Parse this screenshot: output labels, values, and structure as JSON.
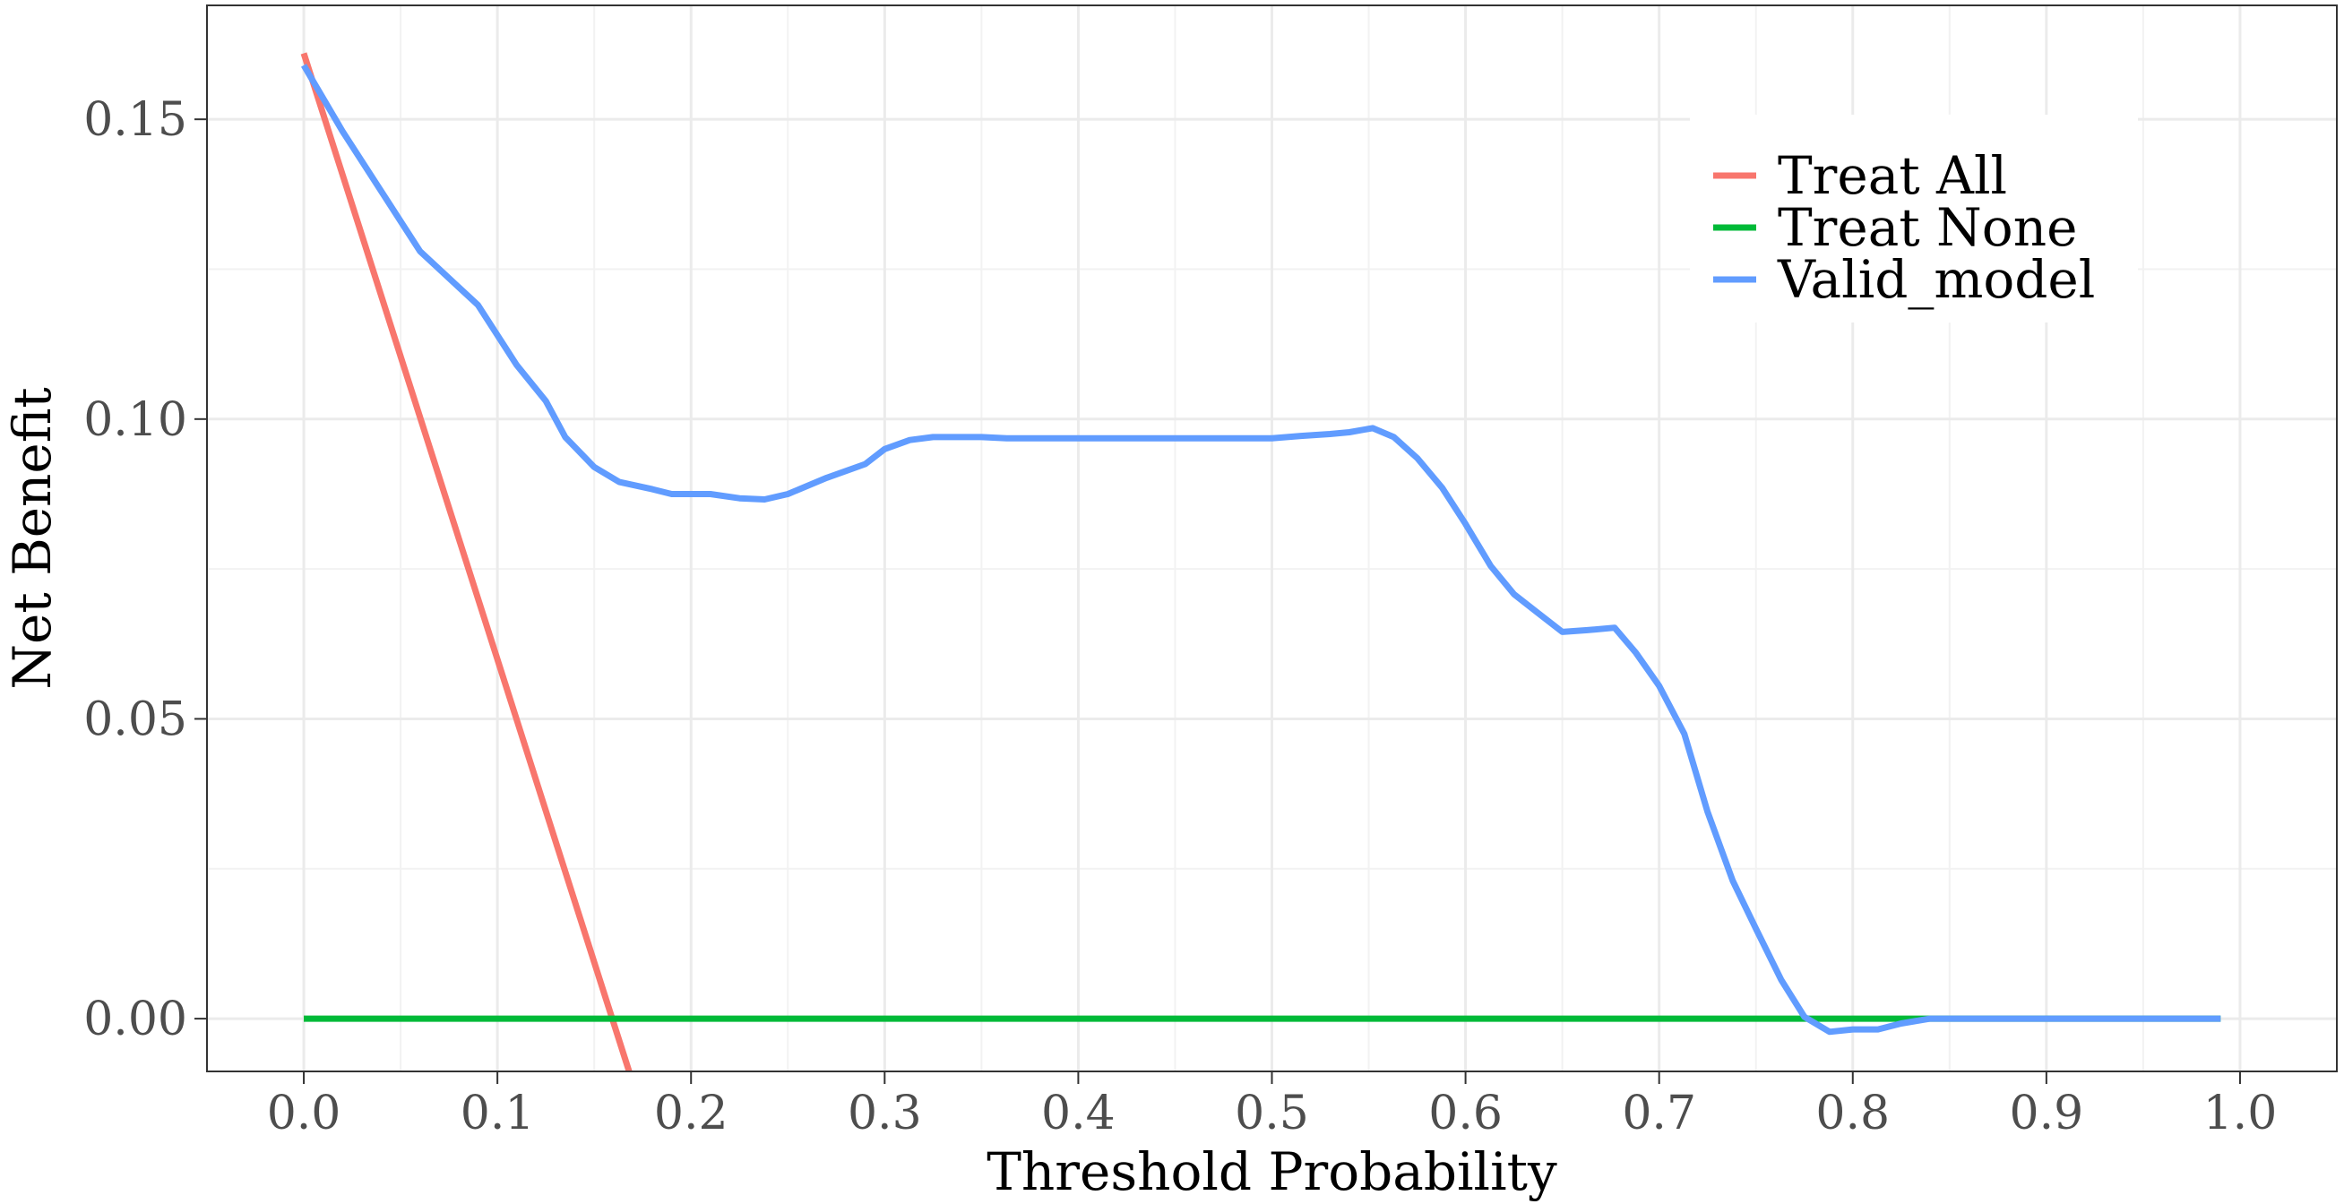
{
  "chart_data": {
    "type": "line",
    "title": "",
    "xlabel": "Threshold Probability",
    "ylabel": "Net Benefit",
    "xlim": [
      -0.05,
      1.05
    ],
    "ylim": [
      -0.0088,
      0.169
    ],
    "x_ticks": [
      0.0,
      0.1,
      0.2,
      0.3,
      0.4,
      0.5,
      0.6,
      0.7,
      0.8,
      0.9,
      1.0
    ],
    "x_tick_labels": [
      "0.0",
      "0.1",
      "0.2",
      "0.3",
      "0.4",
      "0.5",
      "0.6",
      "0.7",
      "0.8",
      "0.9",
      "1.0"
    ],
    "y_ticks": [
      0.0,
      0.05,
      0.1,
      0.15
    ],
    "y_tick_labels": [
      "0.00",
      "0.05",
      "0.10",
      "0.15"
    ],
    "grid": true,
    "legend_position": "top-right",
    "series": [
      {
        "name": "Treat All",
        "color": "#f8766d",
        "x": [
          0.0,
          0.168
        ],
        "y": [
          0.161,
          -0.0088
        ]
      },
      {
        "name": "Treat None",
        "color": "#00ba38",
        "x": [
          0.0,
          0.99
        ],
        "y": [
          0.0,
          0.0
        ]
      },
      {
        "name": "Valid_model",
        "color": "#619cff",
        "x": [
          0.0,
          0.02,
          0.04,
          0.06,
          0.08,
          0.09,
          0.1,
          0.11,
          0.125,
          0.135,
          0.15,
          0.163,
          0.18,
          0.19,
          0.21,
          0.225,
          0.238,
          0.25,
          0.27,
          0.29,
          0.3,
          0.313,
          0.325,
          0.34,
          0.35,
          0.363,
          0.38,
          0.4,
          0.43,
          0.46,
          0.5,
          0.515,
          0.53,
          0.54,
          0.552,
          0.563,
          0.575,
          0.588,
          0.6,
          0.613,
          0.625,
          0.638,
          0.65,
          0.663,
          0.677,
          0.688,
          0.7,
          0.713,
          0.725,
          0.738,
          0.75,
          0.763,
          0.775,
          0.788,
          0.8,
          0.813,
          0.825,
          0.84,
          0.87,
          0.9,
          0.95,
          0.99
        ],
        "y": [
          0.159,
          0.148,
          0.138,
          0.128,
          0.122,
          0.119,
          0.114,
          0.109,
          0.103,
          0.097,
          0.092,
          0.0895,
          0.0883,
          0.0875,
          0.0875,
          0.0868,
          0.0866,
          0.0875,
          0.0902,
          0.0925,
          0.095,
          0.0965,
          0.097,
          0.097,
          0.097,
          0.0968,
          0.0968,
          0.0968,
          0.0968,
          0.0968,
          0.0968,
          0.0972,
          0.0975,
          0.0978,
          0.0985,
          0.097,
          0.0935,
          0.0885,
          0.0825,
          0.0755,
          0.0708,
          0.0675,
          0.0645,
          0.0648,
          0.0652,
          0.061,
          0.0555,
          0.0475,
          0.0345,
          0.023,
          0.015,
          0.0065,
          0.0003,
          -0.0022,
          -0.0018,
          -0.0018,
          -0.0008,
          0.0,
          0.0,
          0.0,
          0.0,
          0.0
        ]
      }
    ]
  }
}
